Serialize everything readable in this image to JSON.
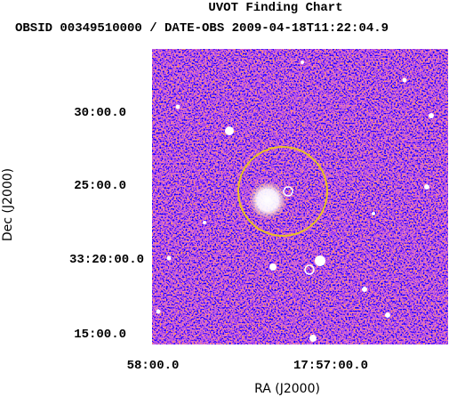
{
  "header": {
    "title": "UVOT Finding Chart",
    "subtitle": "OBSID 00349510000 / DATE-OBS 2009-04-18T11:22:04.9"
  },
  "axes": {
    "x_label": "RA (J2000)",
    "y_label": "Dec (J2000)",
    "x_ticks": [
      "58:00.0",
      "17:57:00.0"
    ],
    "y_ticks": [
      "30:00.0",
      "25:00.0",
      "33:20:00.0",
      "15:00.0"
    ]
  }
}
